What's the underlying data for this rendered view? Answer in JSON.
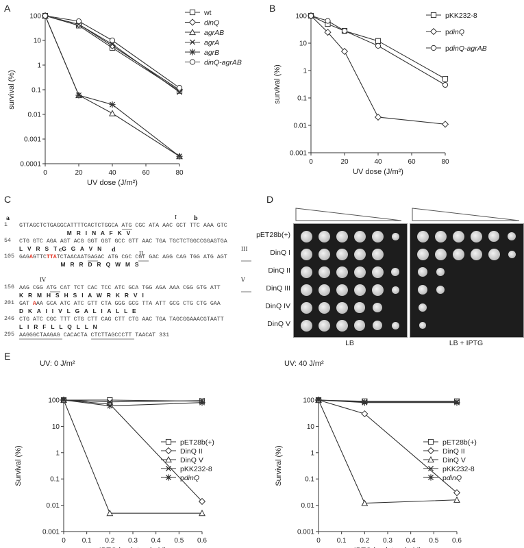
{
  "panel_labels": {
    "a": "A",
    "b": "B",
    "c": "C",
    "d": "D",
    "e": "E"
  },
  "colors": {
    "line": "#333333",
    "highlight": "#e23a2a",
    "plate_bg": "#1d1d1d",
    "colony": "#dcdcdc"
  },
  "chart_data": [
    {
      "id": "A",
      "type": "line",
      "title": "",
      "xlabel": "UV dose (J/m²)",
      "ylabel": "survival (%)",
      "x": [
        0,
        20,
        40,
        80
      ],
      "xlim": [
        0,
        80
      ],
      "xticks": [
        0,
        20,
        40,
        60,
        80
      ],
      "ylog": true,
      "ylim": [
        0.0001,
        100
      ],
      "yticks": [
        "100",
        "10",
        "1",
        "0.1",
        "0.01",
        "0.001",
        "0.0001"
      ],
      "legend_position": "top-right",
      "series": [
        {
          "name": "wt",
          "marker": "square",
          "values": [
            100,
            40,
            5,
            0.09
          ]
        },
        {
          "name": "dinQ",
          "marker": "diamond",
          "values": [
            100,
            45,
            6,
            0.1
          ]
        },
        {
          "name": "agrAB",
          "marker": "triangle",
          "values": [
            100,
            0.06,
            0.011,
            0.0002
          ]
        },
        {
          "name": "agrA",
          "marker": "x",
          "values": [
            100,
            45,
            7,
            0.08
          ]
        },
        {
          "name": "agrB",
          "marker": "star",
          "values": [
            100,
            0.06,
            0.025,
            0.0002
          ]
        },
        {
          "name": "dinQ-agrAB",
          "marker": "circle",
          "values": [
            100,
            60,
            10,
            0.12
          ]
        }
      ],
      "legend_italic": [
        false,
        true,
        true,
        true,
        true,
        true
      ]
    },
    {
      "id": "B",
      "type": "line",
      "title": "",
      "xlabel": "UV dose (J/m²)",
      "ylabel": "survival (%)",
      "x": [
        0,
        10,
        20,
        40,
        80
      ],
      "xlim": [
        0,
        80
      ],
      "xticks": [
        0,
        20,
        40,
        60,
        80
      ],
      "ylog": true,
      "ylim": [
        0.001,
        100
      ],
      "yticks": [
        "100",
        "10",
        "1",
        "0.1",
        "0.01",
        "0.001"
      ],
      "legend_position": "top-right",
      "series": [
        {
          "name": "pKK232-8",
          "marker": "square",
          "values": [
            100,
            50,
            28,
            12,
            0.5
          ]
        },
        {
          "name": "pdinQ",
          "marker": "diamond",
          "values": [
            100,
            25,
            5,
            0.02,
            0.011
          ]
        },
        {
          "name": "pdinQ-agrAB",
          "marker": "circle",
          "values": [
            100,
            65,
            28,
            8,
            0.3
          ]
        }
      ],
      "legend_prefix": [
        "",
        "p",
        "p"
      ],
      "legend_rest": [
        "pKK232-8",
        "dinQ",
        "dinQ-agrAB"
      ],
      "legend_italic": [
        false,
        true,
        true
      ]
    },
    {
      "id": "E1",
      "type": "line",
      "title": "UV: 0 J/m²",
      "xlabel": "IPTG in plates (mM)",
      "ylabel": "Survival (%)",
      "x": [
        0,
        0.2,
        0.6
      ],
      "xlim": [
        0,
        0.6
      ],
      "xticks": [
        "0",
        "0.1",
        "0.2",
        "0.3",
        "0.4",
        "0.5",
        "0.6"
      ],
      "ylog": true,
      "ylim": [
        0.001,
        100
      ],
      "yticks": [
        "100",
        "10",
        "1",
        "0.1",
        "0.01",
        "0.001"
      ],
      "legend_position": "right",
      "series": [
        {
          "name": "pET28b(+)",
          "marker": "square",
          "values": [
            100,
            100,
            90
          ]
        },
        {
          "name": "DinQ II",
          "marker": "diamond",
          "values": [
            100,
            70,
            0.014
          ]
        },
        {
          "name": "DinQ V",
          "marker": "triangle",
          "values": [
            100,
            0.005,
            0.005
          ]
        },
        {
          "name": "pKK232-8",
          "marker": "x",
          "values": [
            100,
            85,
            95
          ]
        },
        {
          "name": "pdinQ",
          "marker": "star",
          "values": [
            100,
            60,
            80
          ]
        }
      ],
      "legend_prefix": [
        "",
        "",
        "",
        "",
        "p"
      ],
      "legend_rest": [
        "pET28b(+)",
        "DinQ II",
        "DinQ V",
        "pKK232-8",
        "dinQ"
      ],
      "legend_italic": [
        false,
        false,
        false,
        false,
        true
      ]
    },
    {
      "id": "E2",
      "type": "line",
      "title": "UV: 40 J/m²",
      "xlabel": "IPTG in plates (mM)",
      "ylabel": "Survival (%)",
      "x": [
        0,
        0.2,
        0.6
      ],
      "xlim": [
        0,
        0.6
      ],
      "xticks": [
        "0",
        "0.1",
        "0.2",
        "0.3",
        "0.4",
        "0.5",
        "0.6"
      ],
      "ylog": true,
      "ylim": [
        0.001,
        100
      ],
      "yticks": [
        "100",
        "10",
        "1",
        "0.1",
        "0.01",
        "0.001"
      ],
      "legend_position": "right",
      "series": [
        {
          "name": "pET28b(+)",
          "marker": "square",
          "values": [
            100,
            90,
            90
          ]
        },
        {
          "name": "DinQ II",
          "marker": "diamond",
          "values": [
            100,
            30,
            0.03
          ]
        },
        {
          "name": "DinQ V",
          "marker": "triangle",
          "values": [
            100,
            0.012,
            0.016
          ]
        },
        {
          "name": "pKK232-8",
          "marker": "x",
          "values": [
            100,
            85,
            85
          ]
        },
        {
          "name": "pdinQ",
          "marker": "star",
          "values": [
            100,
            80,
            80
          ]
        }
      ],
      "legend_prefix": [
        "",
        "",
        "",
        "",
        "p"
      ],
      "legend_rest": [
        "pET28b(+)",
        "DinQ II",
        "DinQ V",
        "pKK232-8",
        "dinQ"
      ],
      "legend_italic": [
        false,
        false,
        false,
        false,
        true
      ]
    }
  ],
  "sequence": {
    "markers": {
      "a": "a",
      "b": "b",
      "c": "c",
      "d": "d",
      "I": "I",
      "II": "II",
      "III": "III",
      "IV": "IV",
      "V": "V"
    },
    "lines": [
      {
        "num": "1",
        "dna": "GTTAGCTCTGAGGCATTTTCACTCTGGCA ATG CGC ATA AAC GCT TTC AAA GTC",
        "aa": "                              M   R   I   N   A   F   K   V"
      },
      {
        "num": "54",
        "dna": "CTG GTC AGA AGT ACG GGT GGT GCC GTT AAC TGA TGCTCTGGCCGGAGTGA",
        "aa": "L   V   R   S   T   G   G   A   V   N"
      },
      {
        "num": "105",
        "dna_pre": "GAG",
        "dna_red1": "A",
        "dna_mid": "GTTC",
        "dna_red2": "TTA",
        "dna_post": "TCTAACAATGAGAC ATG CGC CGT GAC AGG CAG TGG ATG AGT",
        "aa": "                          M   R   R   D   R   Q   W   M   S"
      },
      {
        "num": "156",
        "dna": "AAG CGG ATG CAT TCT CAC TCC ATC GCA TGG AGA AAA CGG GTG ATT",
        "aa": "K   R   M   H   S   H   S   I   A   W   R   K   R   V   I"
      },
      {
        "num": "201",
        "dna_pre": "GAT ",
        "dna_red1": "A",
        "dna_post": "AA GCA ATC ATC GTT CTA GGG GCG TTA ATT GCG CTG CTG GAA",
        "aa": "D   K   A   I   I   V   L   G   A   L   I   A   L   L   E"
      },
      {
        "num": "246",
        "dna": "CTG ATC CGC TTT CTG CTT CAG CTT CTG AAC TGA TAGCGGAAACGTAATT",
        "aa": "L   I   R   F   L   L   Q   L   L   N"
      },
      {
        "num": "295",
        "dna": "AAGGGCTAAGAG CACACTA CTCTTAGCCCTT TAACAT 331",
        "aa": ""
      }
    ]
  },
  "plates": {
    "rows": [
      "pET28b(+)",
      "DinQ I",
      "DinQ II",
      "DinQ III",
      "DinQ IV",
      "DinQ V"
    ],
    "lb_label": "LB",
    "iptg_label": "LB + IPTG",
    "lb_growth": [
      [
        1,
        1,
        1,
        1,
        1,
        0.6
      ],
      [
        1,
        1,
        1,
        1,
        1,
        0
      ],
      [
        1,
        1,
        1,
        1,
        1,
        0.7
      ],
      [
        1,
        1,
        1,
        1,
        1,
        0.6
      ],
      [
        1,
        1,
        1,
        0.9,
        0.8,
        0
      ],
      [
        1,
        1,
        1,
        0.9,
        0.8,
        0.6
      ]
    ],
    "iptg_growth": [
      [
        1,
        1,
        1,
        1,
        0.9,
        0.7
      ],
      [
        1,
        1,
        1,
        1,
        1,
        0.6
      ],
      [
        0.8,
        0.7,
        0,
        0,
        0,
        0
      ],
      [
        0.8,
        0.7,
        0,
        0,
        0,
        0
      ],
      [
        0.7,
        0,
        0,
        0,
        0,
        0
      ],
      [
        0.5,
        0,
        0,
        0,
        0,
        0
      ]
    ]
  }
}
